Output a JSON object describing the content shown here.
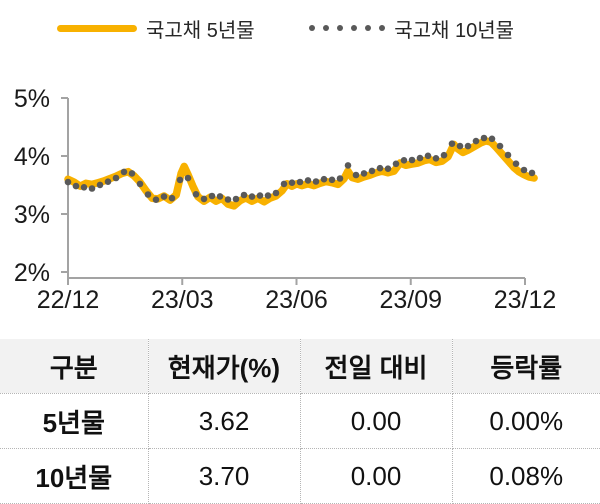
{
  "legend": {
    "series5": {
      "label": "국고채 5년물",
      "color": "#F8B100"
    },
    "series10": {
      "label": "국고채 10년물",
      "color": "#595959"
    }
  },
  "chart_data": {
    "type": "line",
    "title": "",
    "xlabel": "",
    "ylabel": "",
    "ylim": [
      2,
      5
    ],
    "xlim": [
      0,
      12.35
    ],
    "grid": false,
    "legend_position": "top",
    "x_unit": "months since 2022-12",
    "x_ticks": {
      "positions": [
        0,
        3,
        6,
        9,
        12
      ],
      "labels": [
        "22/12",
        "23/03",
        "23/06",
        "23/09",
        "23/12"
      ]
    },
    "y_ticks": {
      "positions": [
        2,
        3,
        4,
        5
      ],
      "labels": [
        "2%",
        "3%",
        "4%",
        "5%"
      ]
    },
    "x": [
      0,
      0.16,
      0.32,
      0.47,
      0.63,
      0.79,
      0.95,
      1.1,
      1.26,
      1.42,
      1.58,
      1.73,
      1.89,
      2.05,
      2.21,
      2.36,
      2.52,
      2.68,
      2.84,
      2.97,
      3.05,
      3.15,
      3.28,
      3.41,
      3.57,
      3.73,
      3.89,
      4.04,
      4.2,
      4.36,
      4.52,
      4.67,
      4.83,
      4.99,
      5.15,
      5.3,
      5.46,
      5.62,
      5.75,
      5.88,
      6.01,
      6.14,
      6.3,
      6.46,
      6.62,
      6.77,
      6.93,
      7.09,
      7.25,
      7.35,
      7.46,
      7.61,
      7.77,
      7.93,
      8.09,
      8.24,
      8.4,
      8.56,
      8.72,
      8.87,
      9.03,
      9.19,
      9.35,
      9.5,
      9.66,
      9.82,
      9.98,
      10.13,
      10.24,
      10.37,
      10.5,
      10.66,
      10.82,
      10.97,
      11.11,
      11.24,
      11.39,
      11.55,
      11.71,
      11.84,
      11.97,
      12.1,
      12.24
    ],
    "series": [
      {
        "name": "국고채 5년물",
        "style": "line",
        "color": "#F8B100",
        "y": [
          3.6,
          3.55,
          3.48,
          3.53,
          3.51,
          3.54,
          3.57,
          3.61,
          3.65,
          3.7,
          3.73,
          3.66,
          3.55,
          3.4,
          3.27,
          3.26,
          3.31,
          3.24,
          3.33,
          3.7,
          3.82,
          3.68,
          3.48,
          3.3,
          3.22,
          3.29,
          3.22,
          3.27,
          3.17,
          3.14,
          3.23,
          3.28,
          3.22,
          3.27,
          3.21,
          3.27,
          3.31,
          3.4,
          3.52,
          3.48,
          3.52,
          3.49,
          3.52,
          3.49,
          3.53,
          3.56,
          3.54,
          3.51,
          3.61,
          3.74,
          3.63,
          3.6,
          3.64,
          3.67,
          3.71,
          3.74,
          3.71,
          3.74,
          3.88,
          3.84,
          3.86,
          3.88,
          3.92,
          3.94,
          3.89,
          3.91,
          3.99,
          4.2,
          4.12,
          4.06,
          4.1,
          4.16,
          4.22,
          4.26,
          4.24,
          4.15,
          4.04,
          3.92,
          3.8,
          3.73,
          3.68,
          3.64,
          3.62
        ]
      },
      {
        "name": "국고채 10년물",
        "style": "dots",
        "color": "#595959",
        "y": [
          3.55,
          3.5,
          3.44,
          3.47,
          3.44,
          3.49,
          3.53,
          3.57,
          3.62,
          3.7,
          3.78,
          3.66,
          3.52,
          3.38,
          3.24,
          3.25,
          3.3,
          3.24,
          3.34,
          3.66,
          3.76,
          3.62,
          3.44,
          3.28,
          3.26,
          3.33,
          3.27,
          3.32,
          3.25,
          3.24,
          3.3,
          3.34,
          3.3,
          3.33,
          3.29,
          3.33,
          3.36,
          3.48,
          3.58,
          3.54,
          3.57,
          3.54,
          3.58,
          3.55,
          3.58,
          3.61,
          3.59,
          3.57,
          3.7,
          3.84,
          3.7,
          3.66,
          3.7,
          3.73,
          3.77,
          3.8,
          3.78,
          3.82,
          3.96,
          3.91,
          3.93,
          3.95,
          3.99,
          4.01,
          3.96,
          3.99,
          4.06,
          4.28,
          4.2,
          4.13,
          4.17,
          4.24,
          4.29,
          4.32,
          4.31,
          4.24,
          4.14,
          4.02,
          3.9,
          3.82,
          3.76,
          3.72,
          3.7
        ]
      }
    ]
  },
  "table": {
    "headers": [
      "구분",
      "현재가(%)",
      "전일 대비",
      "등락률"
    ],
    "rows": [
      {
        "name": "5년물",
        "current": "3.62",
        "change": "0.00",
        "rate": "0.00%"
      },
      {
        "name": "10년물",
        "current": "3.70",
        "change": "0.00",
        "rate": "0.08%"
      }
    ]
  },
  "colors": {
    "accent": "#F8B100",
    "dots": "#595959",
    "axis": "#A3A3A3",
    "text": "#1A1A1A",
    "header_bg": "#F2F2F2"
  }
}
